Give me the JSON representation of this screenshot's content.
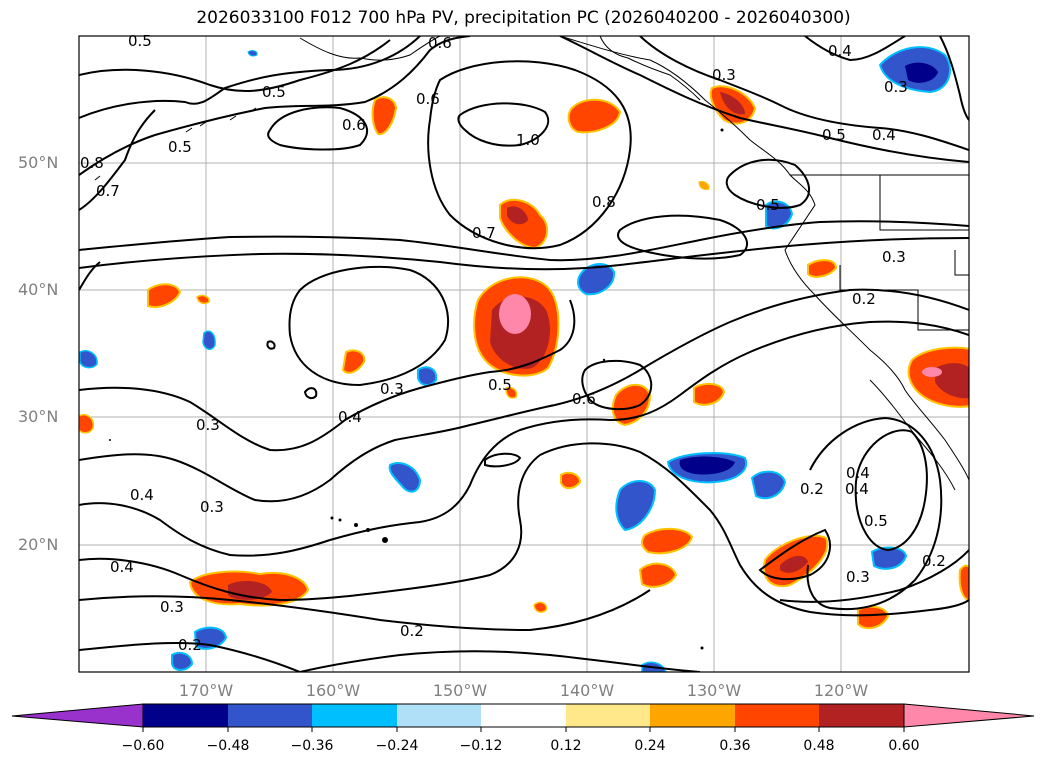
{
  "title": "2026033100 F012 700 hPa PV, precipitation PC (2026040200 - 2026040300)",
  "lat_labels": [
    "50°N",
    "40°N",
    "30°N",
    "20°N"
  ],
  "lon_labels": [
    "170°W",
    "160°W",
    "150°W",
    "140°W",
    "130°W",
    "120°W"
  ],
  "colorbar": {
    "ticks": [
      "−0.60",
      "−0.48",
      "−0.36",
      "−0.24",
      "−0.12",
      "0.12",
      "0.24",
      "0.36",
      "0.48",
      "0.60"
    ],
    "colors": [
      "#9932cc",
      "#00008b",
      "#3355cc",
      "#00bfff",
      "#b0e0f8",
      "#ffffff",
      "#ffe88a",
      "#ffa500",
      "#ff4500",
      "#b22222",
      "#ff88aa"
    ]
  },
  "contour_labels": [
    "0.5",
    "0.6",
    "0.5",
    "0.6",
    "0.5",
    "0.6",
    "0.8",
    "0.7",
    "1.0",
    "0.8",
    "0.7",
    "0.3",
    "0.5",
    "0.4",
    "0.3",
    "0.4",
    "0.5",
    "0.3",
    "0.2",
    "0.3",
    "0.4",
    "0.5",
    "0.6",
    "0.3",
    "0.4",
    "0.3",
    "0.4",
    "0.4",
    "0.3",
    "0.2",
    "0.2",
    "0.4",
    "0.5",
    "0.3",
    "0.2",
    "0.2"
  ],
  "chart_data": {
    "type": "contour-map",
    "title": "2026033100 F012 700 hPa PV, precipitation PC (2026040200 - 2026040300)",
    "lon_range": [
      -180,
      -110
    ],
    "lat_range": [
      10,
      60
    ],
    "fields": {
      "contour": "700 hPa PV (line contours)",
      "shading": "precipitation PC (filled)"
    },
    "contour_levels": [
      0.2,
      0.3,
      0.4,
      0.5,
      0.6,
      0.7,
      0.8,
      1.0
    ],
    "shading_levels": [
      -0.6,
      -0.48,
      -0.36,
      -0.24,
      -0.12,
      0.12,
      0.24,
      0.36,
      0.48,
      0.6
    ],
    "colorbar_extend": "both"
  }
}
